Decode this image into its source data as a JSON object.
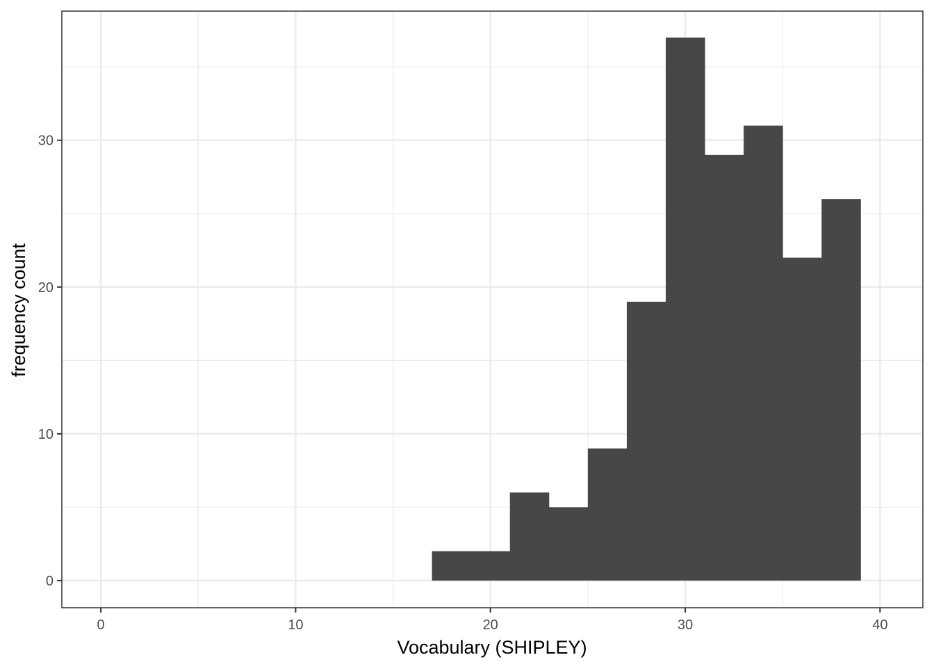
{
  "chart_data": {
    "type": "bar",
    "subtype": "histogram",
    "title": "",
    "xlabel": "Vocabulary (SHIPLEY)",
    "ylabel": "frequency count",
    "xlim": [
      -2,
      42.2
    ],
    "ylim": [
      -1.85,
      38.8
    ],
    "x_ticks": [
      0,
      10,
      20,
      30,
      40
    ],
    "x_tick_labels": [
      "0",
      "10",
      "20",
      "30",
      "40"
    ],
    "x_minor_ticks": [
      5,
      15,
      25,
      35
    ],
    "y_ticks": [
      0,
      10,
      20,
      30
    ],
    "y_tick_labels": [
      "0",
      "10",
      "20",
      "30"
    ],
    "y_minor_ticks": [
      5,
      15,
      25,
      35
    ],
    "grid": true,
    "bar_color": "#474747",
    "bins": [
      {
        "x0": 17,
        "x1": 19,
        "count": 2
      },
      {
        "x0": 19,
        "x1": 21,
        "count": 2
      },
      {
        "x0": 21,
        "x1": 23,
        "count": 6
      },
      {
        "x0": 23,
        "x1": 25,
        "count": 5
      },
      {
        "x0": 25,
        "x1": 27,
        "count": 9
      },
      {
        "x0": 27,
        "x1": 29,
        "count": 19
      },
      {
        "x0": 29,
        "x1": 31,
        "count": 37
      },
      {
        "x0": 31,
        "x1": 33,
        "count": 29
      },
      {
        "x0": 33,
        "x1": 35,
        "count": 31
      },
      {
        "x0": 35,
        "x1": 37,
        "count": 22
      },
      {
        "x0": 37,
        "x1": 39,
        "count": 26
      }
    ]
  }
}
